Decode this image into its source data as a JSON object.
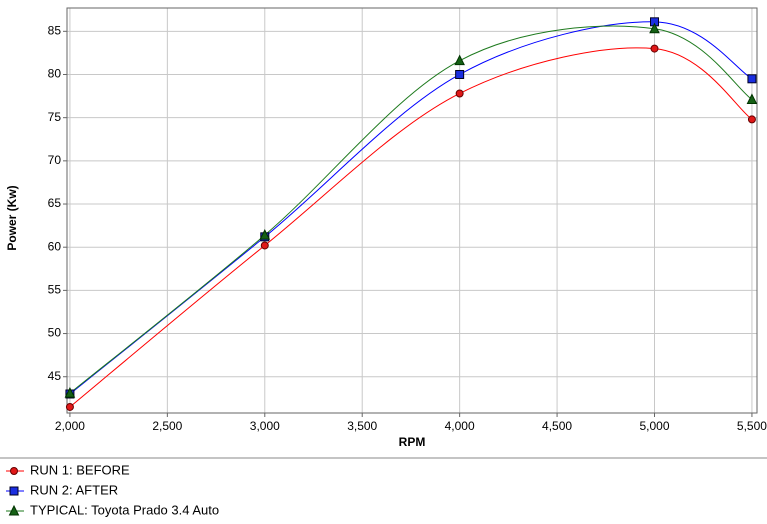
{
  "chart_data": {
    "type": "line",
    "x_label": "RPM",
    "y_label": "Power (Kw)",
    "x": [
      2000,
      3000,
      4000,
      5000,
      5500
    ],
    "series": [
      {
        "name": "RUN 1: BEFORE",
        "color": "#ff0000",
        "marker_color": "#e01818",
        "marker": "circle",
        "values": [
          41.5,
          60.2,
          77.8,
          83.0,
          74.8
        ]
      },
      {
        "name": "RUN 2: AFTER",
        "color": "#0000ff",
        "marker_color": "#1a2ee0",
        "marker": "square",
        "values": [
          43.0,
          61.2,
          80.0,
          86.1,
          79.5
        ]
      },
      {
        "name": "TYPICAL: Toyota Prado 3.4 Auto",
        "color": "#1e7a1e",
        "marker_color": "#156015",
        "marker": "triangle",
        "values": [
          43.1,
          61.4,
          81.6,
          85.3,
          77.1
        ]
      }
    ],
    "xlim": [
      1985,
      5526
    ],
    "ylim": [
      40.8,
      87.7
    ],
    "xticks": [
      {
        "value": 2000,
        "label": "2,000"
      },
      {
        "value": 2500,
        "label": "2,500"
      },
      {
        "value": 3000,
        "label": "3,000"
      },
      {
        "value": 3500,
        "label": "3,500"
      },
      {
        "value": 4000,
        "label": "4,000"
      },
      {
        "value": 4500,
        "label": "4,500"
      },
      {
        "value": 5000,
        "label": "5,000"
      },
      {
        "value": 5500,
        "label": "5,500"
      }
    ],
    "yticks": [
      45,
      50,
      55,
      60,
      65,
      70,
      75,
      80,
      85
    ],
    "grid": true
  }
}
